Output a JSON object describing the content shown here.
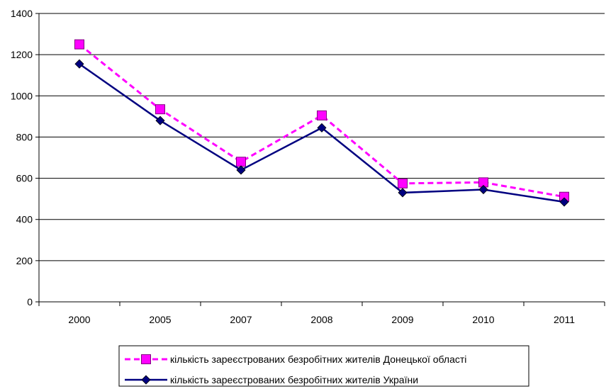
{
  "chart_data": {
    "type": "line",
    "categories": [
      "2000",
      "2005",
      "2007",
      "2008",
      "2009",
      "2010",
      "2011"
    ],
    "ylim": [
      0,
      1400
    ],
    "yticks": [
      0,
      200,
      400,
      600,
      800,
      1000,
      1200,
      1400
    ],
    "grid": "horizontal",
    "legend_position": "bottom",
    "series": [
      {
        "name": "кількість зареєстрованих безробітних жителів Донецької області",
        "values": [
          1250,
          935,
          680,
          905,
          575,
          580,
          510
        ],
        "color": "#ff00ff",
        "marker": "square",
        "line_style": "dashed"
      },
      {
        "name": "кількість зареєстрованих безробітних жителів України",
        "values": [
          1155,
          880,
          640,
          845,
          530,
          545,
          485
        ],
        "color": "#000080",
        "marker": "diamond",
        "line_style": "solid"
      }
    ]
  }
}
